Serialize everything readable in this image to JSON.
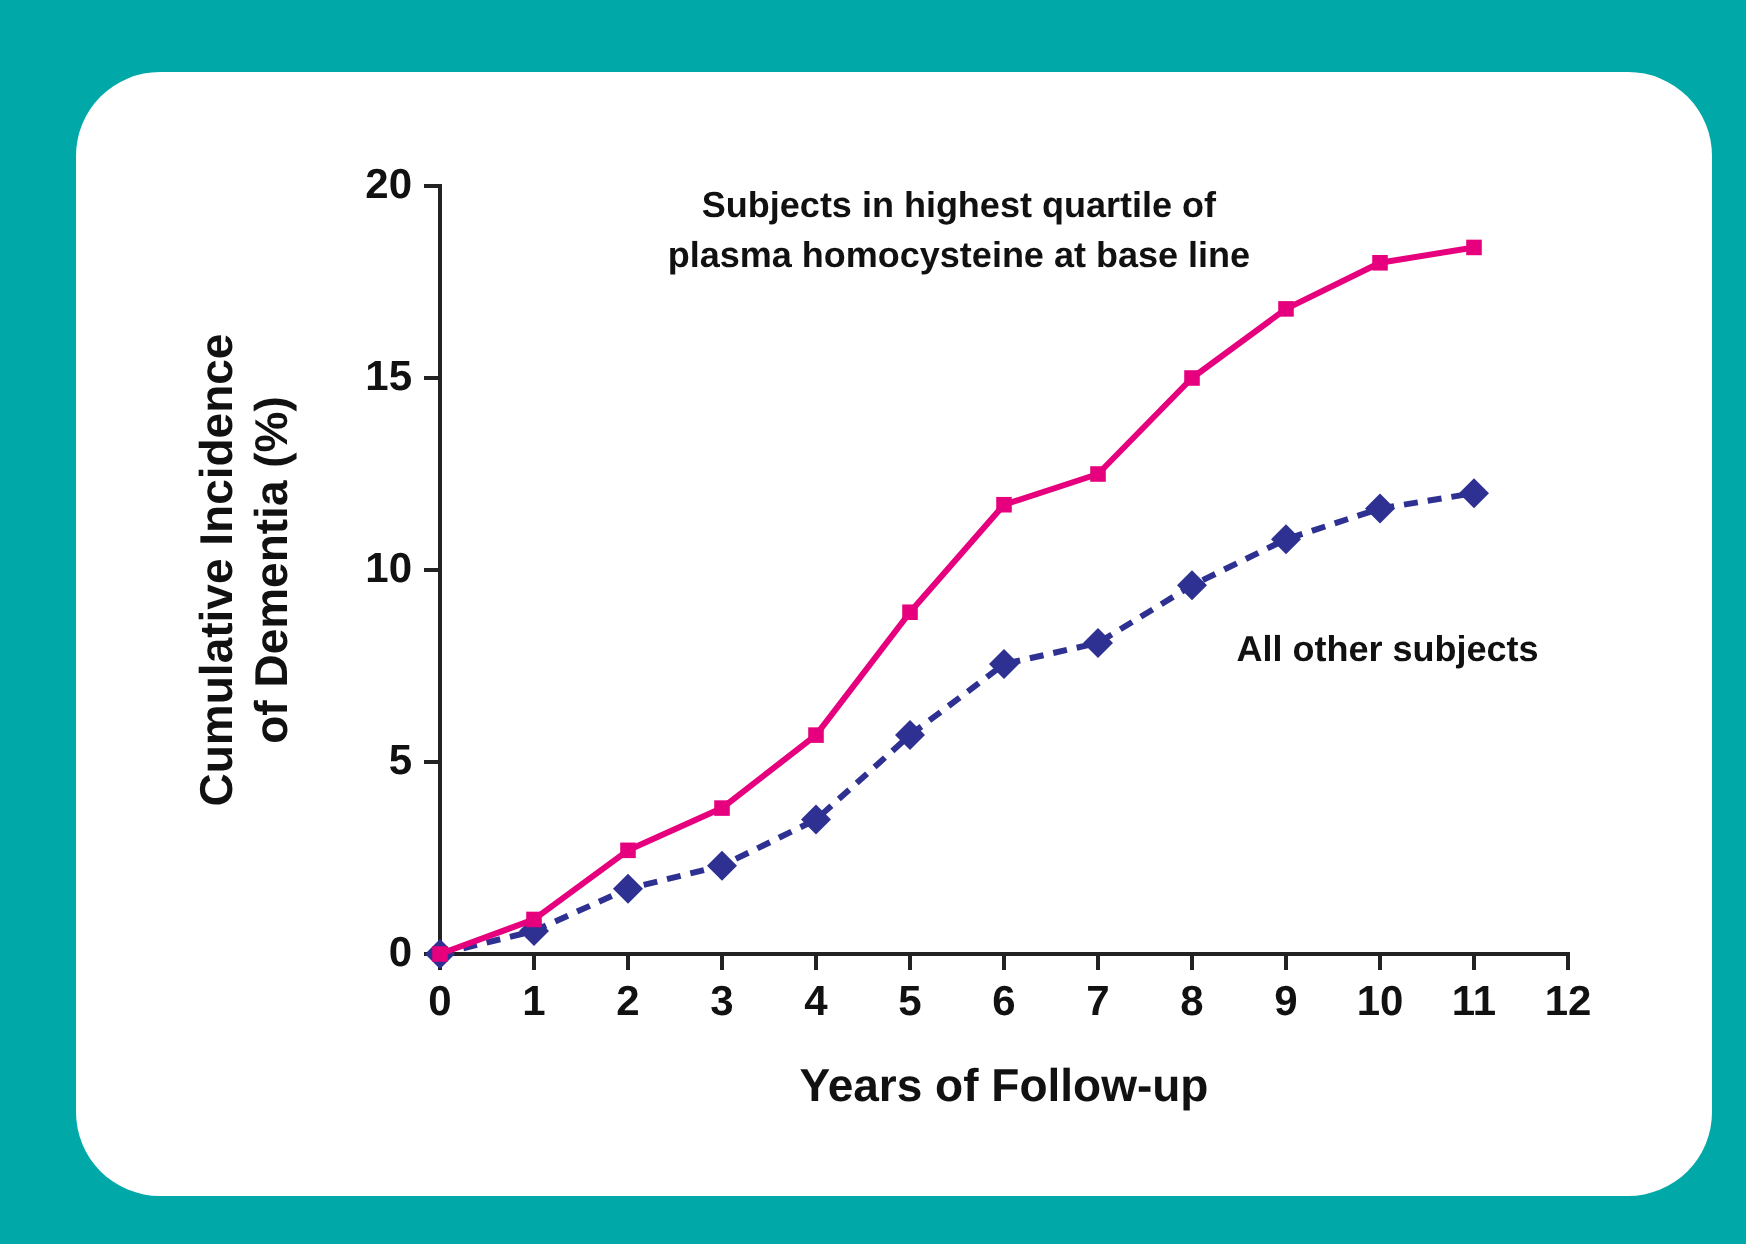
{
  "chart_data": {
    "type": "line",
    "xlabel": "Years of Follow-up",
    "ylabel": "Cumulative Incidence\nof Dementia (%)",
    "x": [
      0,
      1,
      2,
      3,
      4,
      5,
      6,
      7,
      8,
      9,
      10,
      11
    ],
    "series": [
      {
        "color": "#e6007e",
        "marker": "square",
        "line_style": "solid",
        "values": [
          0,
          0.9,
          2.7,
          3.8,
          5.7,
          8.9,
          11.7,
          12.5,
          15.0,
          16.8,
          18.0,
          18.4
        ]
      },
      {
        "color": "#2e3192",
        "marker": "diamond",
        "line_style": "dashed",
        "values": [
          0,
          0.6,
          1.7,
          2.3,
          3.5,
          5.7,
          7.55,
          8.1,
          9.6,
          10.8,
          11.6,
          12.0
        ]
      }
    ],
    "xlim": [
      0,
      12
    ],
    "xticks": [
      0,
      1,
      2,
      3,
      4,
      5,
      6,
      7,
      8,
      9,
      10,
      11,
      12
    ],
    "ylim": [
      0,
      20
    ],
    "yticks": [
      0,
      5,
      10,
      15,
      20
    ],
    "grid": false,
    "legend": false,
    "annotations": [
      "Subjects in highest quartile of\nplasma homocysteine at base line",
      "All other subjects"
    ]
  }
}
